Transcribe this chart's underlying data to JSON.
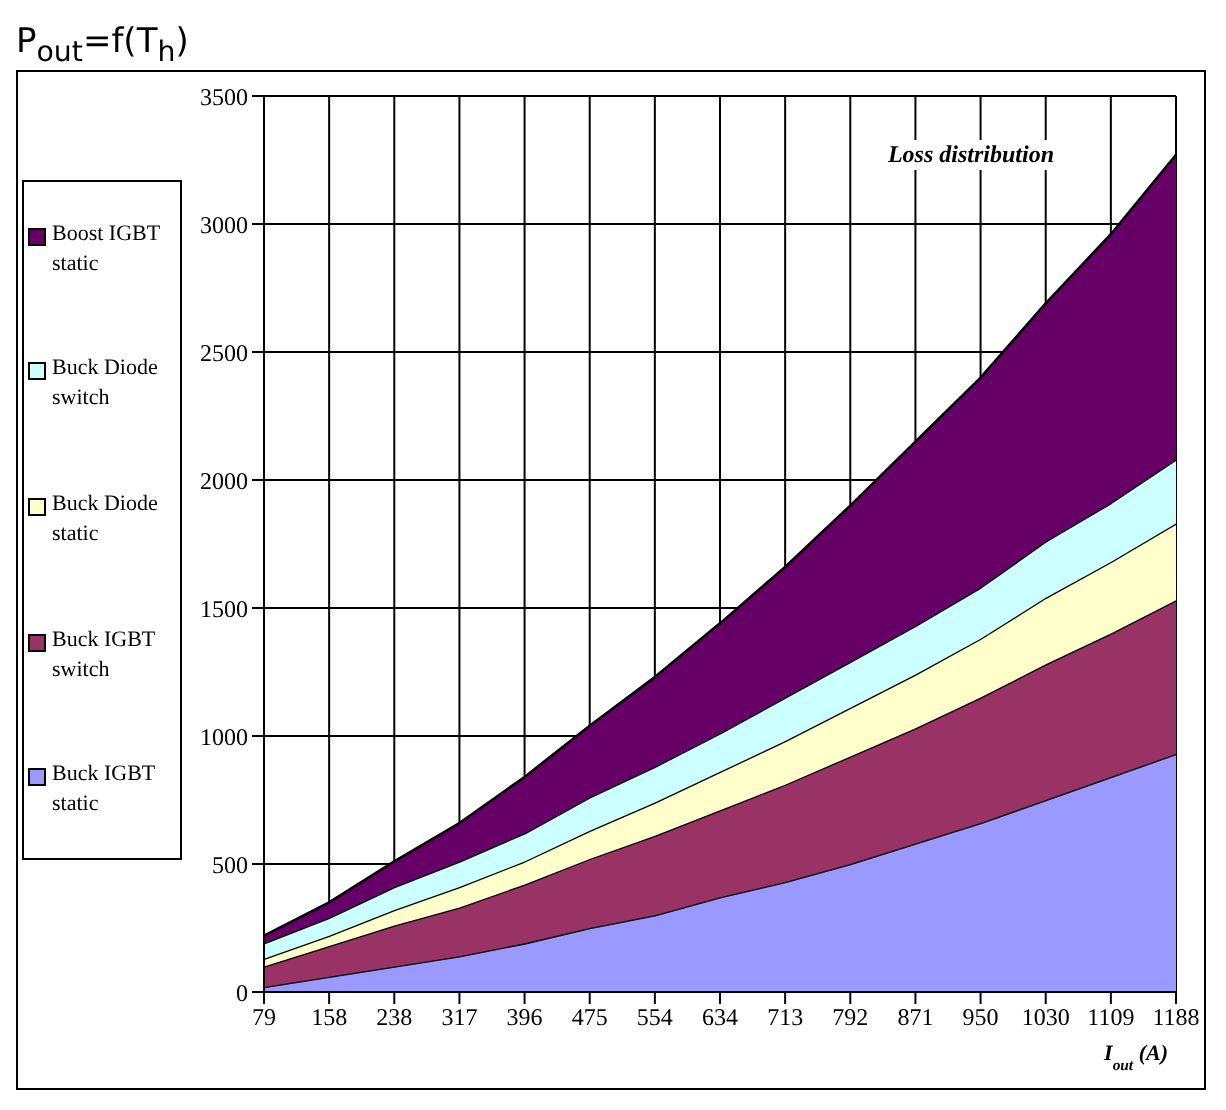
{
  "chart_data": {
    "type": "area",
    "title": "P$_{out}$=f(T$_{h}$)",
    "xlabel": "I$_{out}$ (A)",
    "annotations": [
      "Loss distribution"
    ],
    "categories": [
      "79",
      "158",
      "238",
      "317",
      "396",
      "475",
      "554",
      "634",
      "713",
      "792",
      "871",
      "950",
      "1030",
      "1109",
      "1188"
    ],
    "stacked": true,
    "series": [
      {
        "name": "Buck IGBT static",
        "color": "#9999ff",
        "values": [
          20,
          60,
          100,
          140,
          190,
          250,
          300,
          370,
          430,
          500,
          580,
          660,
          750,
          840,
          930
        ]
      },
      {
        "name": "Buck IGBT switch",
        "color": "#993366",
        "values": [
          80,
          120,
          160,
          190,
          230,
          270,
          310,
          340,
          380,
          420,
          450,
          490,
          530,
          560,
          600
        ]
      },
      {
        "name": "Buck Diode static",
        "color": "#ffffcc",
        "values": [
          30,
          40,
          60,
          80,
          90,
          110,
          130,
          150,
          170,
          190,
          210,
          230,
          260,
          280,
          300
        ]
      },
      {
        "name": "Buck Diode switch",
        "color": "#ccffff",
        "values": [
          60,
          70,
          90,
          100,
          110,
          130,
          140,
          150,
          170,
          180,
          190,
          200,
          220,
          230,
          250
        ]
      },
      {
        "name": "Boost IGBT static",
        "color": "#660066",
        "values": [
          30,
          60,
          100,
          150,
          220,
          280,
          350,
          430,
          510,
          610,
          720,
          820,
          930,
          1050,
          1190
        ]
      }
    ],
    "ylim": [
      0,
      3500
    ],
    "yticks": [
      0,
      500,
      1000,
      1500,
      2000,
      2500,
      3000,
      3500
    ],
    "grid": true,
    "legend": "left"
  }
}
